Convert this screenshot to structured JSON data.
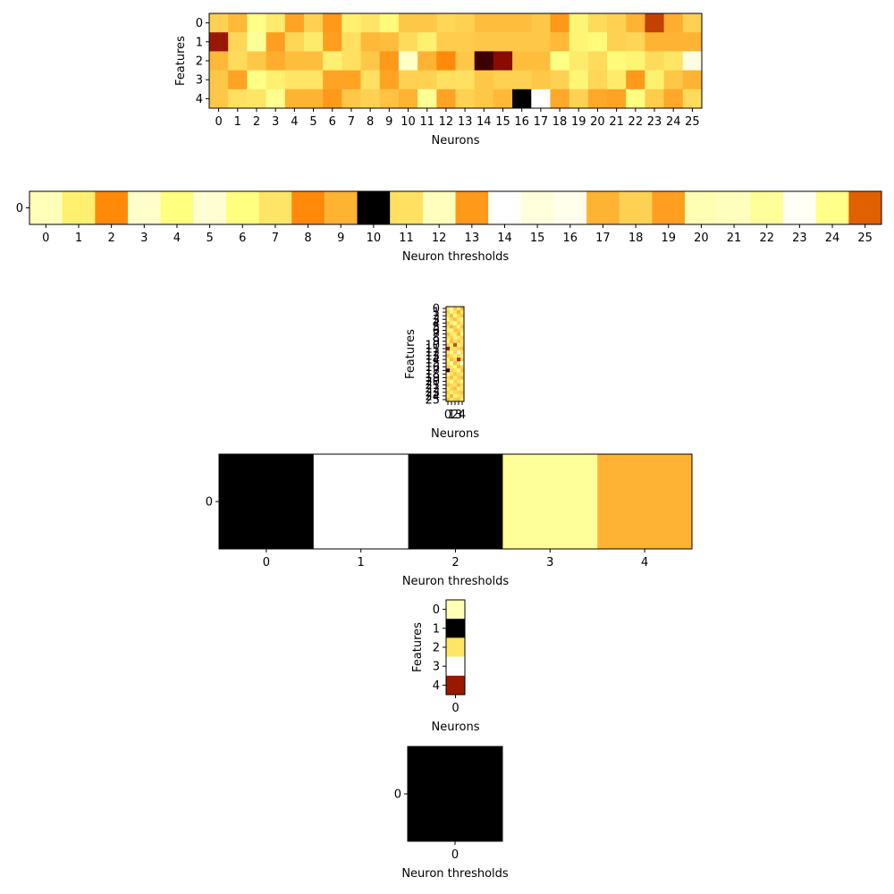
{
  "figure": {
    "colormap": "afmhot",
    "background": "#ffffff"
  },
  "chart_data": [
    {
      "type": "heatmap",
      "name": "weights-layer-1",
      "xlabel": "Neurons",
      "ylabel": "Features",
      "x_ticks": [
        "0",
        "1",
        "2",
        "3",
        "4",
        "5",
        "6",
        "7",
        "8",
        "9",
        "10",
        "11",
        "12",
        "13",
        "14",
        "15",
        "16",
        "17",
        "18",
        "19",
        "20",
        "21",
        "22",
        "23",
        "24",
        "25"
      ],
      "y_ticks": [
        "0",
        "1",
        "2",
        "3",
        "4"
      ],
      "values": [
        [
          0.66,
          0.61,
          0.76,
          0.71,
          0.57,
          0.66,
          0.55,
          0.72,
          0.7,
          0.74,
          0.64,
          0.64,
          0.67,
          0.66,
          0.62,
          0.62,
          0.62,
          0.64,
          0.55,
          0.73,
          0.68,
          0.66,
          0.6,
          0.38,
          0.59,
          0.66
        ],
        [
          0.3,
          0.67,
          0.8,
          0.56,
          0.67,
          0.71,
          0.56,
          0.69,
          0.61,
          0.62,
          0.68,
          0.72,
          0.65,
          0.65,
          0.64,
          0.64,
          0.64,
          0.64,
          0.61,
          0.73,
          0.74,
          0.66,
          0.67,
          0.6,
          0.6,
          0.6
        ],
        [
          0.61,
          0.68,
          0.64,
          0.59,
          0.62,
          0.62,
          0.72,
          0.69,
          0.64,
          0.55,
          0.89,
          0.6,
          0.52,
          0.64,
          0.12,
          0.27,
          0.62,
          0.62,
          0.76,
          0.71,
          0.68,
          0.74,
          0.73,
          0.68,
          0.7,
          0.94
        ],
        [
          0.64,
          0.57,
          0.76,
          0.72,
          0.7,
          0.7,
          0.57,
          0.57,
          0.69,
          0.57,
          0.66,
          0.66,
          0.69,
          0.69,
          0.64,
          0.66,
          0.66,
          0.64,
          0.66,
          0.73,
          0.67,
          0.71,
          0.55,
          0.72,
          0.64,
          0.6
        ],
        [
          0.64,
          0.69,
          0.7,
          0.78,
          0.6,
          0.6,
          0.55,
          0.64,
          0.66,
          0.63,
          0.6,
          0.79,
          0.57,
          0.66,
          0.64,
          0.61,
          0.0,
          1.0,
          0.58,
          0.66,
          0.58,
          0.57,
          0.75,
          0.65,
          0.58,
          0.68
        ]
      ]
    },
    {
      "type": "heatmap",
      "name": "thresholds-layer-1",
      "xlabel": "Neuron thresholds",
      "ylabel": "",
      "x_ticks": [
        "0",
        "1",
        "2",
        "3",
        "4",
        "5",
        "6",
        "7",
        "8",
        "9",
        "10",
        "11",
        "12",
        "13",
        "14",
        "15",
        "16",
        "17",
        "18",
        "19",
        "20",
        "21",
        "22",
        "23",
        "24",
        "25"
      ],
      "y_ticks": [
        "0"
      ],
      "values": [
        [
          0.86,
          0.72,
          0.52,
          0.9,
          0.75,
          0.91,
          0.75,
          0.7,
          0.52,
          0.6,
          0.0,
          0.69,
          0.87,
          0.55,
          1.0,
          0.93,
          0.96,
          0.6,
          0.66,
          0.56,
          0.85,
          0.87,
          0.8,
          0.98,
          0.77,
          0.44
        ]
      ]
    },
    {
      "type": "heatmap",
      "name": "weights-layer-2",
      "xlabel": "Neurons",
      "ylabel": "Features",
      "x_ticks": [
        "0",
        "1",
        "2",
        "3",
        "4"
      ],
      "y_ticks": [
        "0",
        "1",
        "2",
        "3",
        "4",
        "5",
        "6",
        "7",
        "8",
        "9",
        "10",
        "11",
        "12",
        "13",
        "14",
        "15",
        "16",
        "17",
        "18",
        "19",
        "20",
        "21",
        "22",
        "23",
        "24",
        "25"
      ],
      "values": [
        [
          0.7,
          0.8,
          0.65,
          0.72,
          0.6
        ],
        [
          0.66,
          0.74,
          0.69,
          0.6,
          0.72
        ],
        [
          0.7,
          0.62,
          0.78,
          0.68,
          0.64
        ],
        [
          0.75,
          0.68,
          0.62,
          0.7,
          0.73
        ],
        [
          0.64,
          0.72,
          0.8,
          0.66,
          0.7
        ],
        [
          0.69,
          0.6,
          0.67,
          0.78,
          0.63
        ],
        [
          0.72,
          0.77,
          0.64,
          0.66,
          0.7
        ],
        [
          0.63,
          0.7,
          0.72,
          0.61,
          0.75
        ],
        [
          0.68,
          0.66,
          0.73,
          0.71,
          0.66
        ],
        [
          0.74,
          0.62,
          0.69,
          0.64,
          0.7
        ],
        [
          0.66,
          0.72,
          0.4,
          0.75,
          0.68
        ],
        [
          0.3,
          0.68,
          0.7,
          0.66,
          0.62
        ],
        [
          0.7,
          0.74,
          0.66,
          0.9,
          0.68
        ],
        [
          0.64,
          0.69,
          0.72,
          0.67,
          0.72
        ],
        [
          0.72,
          0.62,
          0.68,
          0.35,
          0.66
        ],
        [
          0.68,
          0.85,
          0.62,
          0.7,
          0.95
        ],
        [
          0.66,
          0.7,
          0.75,
          0.62,
          0.68
        ],
        [
          0.12,
          0.66,
          0.7,
          0.74,
          0.64
        ],
        [
          0.74,
          0.7,
          0.64,
          0.68,
          0.7
        ],
        [
          0.68,
          0.62,
          0.72,
          0.66,
          0.62
        ],
        [
          0.7,
          0.76,
          0.66,
          0.7,
          0.74
        ],
        [
          0.64,
          0.68,
          0.7,
          0.62,
          0.68
        ],
        [
          0.72,
          0.66,
          0.62,
          0.74,
          0.7
        ],
        [
          0.66,
          0.72,
          0.68,
          0.66,
          0.64
        ],
        [
          0.7,
          0.6,
          0.74,
          0.7,
          0.68
        ],
        [
          0.62,
          0.7,
          0.66,
          0.64,
          0.72
        ]
      ]
    },
    {
      "type": "heatmap",
      "name": "thresholds-layer-2",
      "xlabel": "Neuron thresholds",
      "ylabel": "",
      "x_ticks": [
        "0",
        "1",
        "2",
        "3",
        "4"
      ],
      "y_ticks": [
        "0"
      ],
      "values": [
        [
          0.0,
          1.0,
          0.0,
          0.8,
          0.6
        ]
      ]
    },
    {
      "type": "heatmap",
      "name": "weights-layer-3",
      "xlabel": "Neurons",
      "ylabel": "Features",
      "x_ticks": [
        "0"
      ],
      "y_ticks": [
        "0",
        "1",
        "2",
        "3",
        "4"
      ],
      "values": [
        [
          0.86
        ],
        [
          0.0
        ],
        [
          0.7
        ],
        [
          1.0
        ],
        [
          0.3
        ]
      ]
    },
    {
      "type": "heatmap",
      "name": "thresholds-layer-3",
      "xlabel": "Neuron thresholds",
      "ylabel": "",
      "x_ticks": [
        "0"
      ],
      "y_ticks": [
        "0"
      ],
      "values": [
        [
          0.0
        ]
      ]
    }
  ]
}
